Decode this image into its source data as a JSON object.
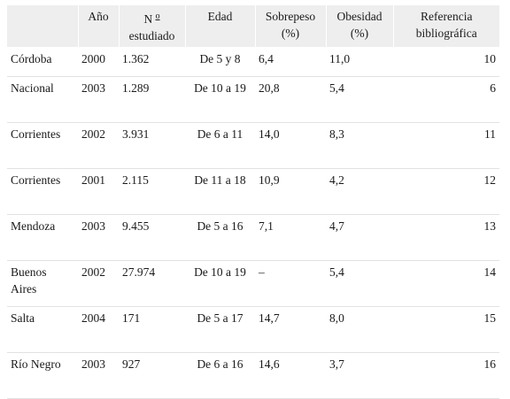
{
  "headers": {
    "year": "Año",
    "n_prefix": "N",
    "n_sup": "o",
    "n_second": "estudiado",
    "age": "Edad",
    "overweight_1": "Sobrepeso",
    "overweight_2": "(%)",
    "obesity_1": "Obesidad",
    "obesity_2": "(%)",
    "ref_1": "Referencia",
    "ref_2": "bibliográfica"
  },
  "rows": [
    {
      "place": "Córdoba",
      "year": "2000",
      "n": "1.362",
      "age": "De 5 y 8",
      "overweight": "6,4",
      "obesity": "11,0",
      "ref": "10"
    },
    {
      "place": "Nacional",
      "year": "2003",
      "n": "1.289",
      "age": "De 10 a 19",
      "overweight": "20,8",
      "obesity": "5,4",
      "ref": "6"
    },
    {
      "place": "Corrientes",
      "year": "2002",
      "n": "3.931",
      "age": "De 6 a 11",
      "overweight": "14,0",
      "obesity": "8,3",
      "ref": "11"
    },
    {
      "place": "Corrientes",
      "year": "2001",
      "n": "2.115",
      "age": "De 11 a 18",
      "overweight": "10,9",
      "obesity": "4,2",
      "ref": "12"
    },
    {
      "place": "Mendoza",
      "year": "2003",
      "n": "9.455",
      "age": "De 5 a 16",
      "overweight": "7,1",
      "obesity": "4,7",
      "ref": "13"
    },
    {
      "place": "Buenos Aires",
      "year": "2002",
      "n": "27.974",
      "age": "De 10 a 19",
      "overweight": "–",
      "obesity": "5,4",
      "ref": "14"
    },
    {
      "place": "Salta",
      "year": "2004",
      "n": "171",
      "age": "De 5 a 17",
      "overweight": "14,7",
      "obesity": "8,0",
      "ref": "15"
    },
    {
      "place": "Río Negro",
      "year": "2003",
      "n": "927",
      "age": "De 6 a 16",
      "overweight": "14,6",
      "obesity": "3,7",
      "ref": "16"
    }
  ]
}
